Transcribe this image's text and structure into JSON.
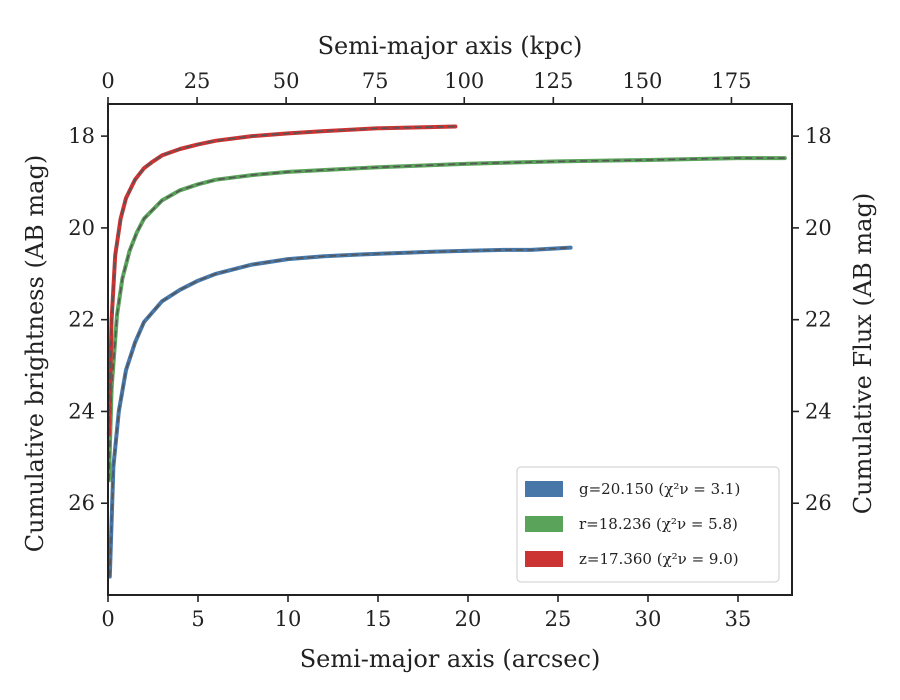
{
  "chart_data": {
    "type": "line",
    "xlabel": "Semi-major axis (arcsec)",
    "x2label": "Semi-major axis (kpc)",
    "ylabel": "Cumulative brightness (AB mag)",
    "y2label": "Cumulative Flux (AB mag)",
    "xlim": [
      0,
      38
    ],
    "x2lim": [
      0,
      192
    ],
    "ylim": [
      28.0,
      17.3
    ],
    "y_inverted": true,
    "xticks": [
      "0",
      "5",
      "10",
      "15",
      "20",
      "25",
      "30",
      "35"
    ],
    "x2ticks": [
      "0",
      "25",
      "50",
      "75",
      "100",
      "125",
      "150",
      "175"
    ],
    "yticks": [
      "18",
      "20",
      "22",
      "24",
      "26"
    ],
    "grid": false,
    "legend_position": "lower-right",
    "series": [
      {
        "name": "g",
        "label_main": "g=20.150",
        "label_stat": "(χ²ν = 3.1)",
        "color": "#4777a8",
        "x": [
          0.1,
          0.3,
          0.6,
          1.0,
          1.5,
          2.0,
          3.0,
          4.0,
          5.0,
          6.0,
          8.0,
          10.0,
          12.0,
          14.0,
          16.0,
          18.0,
          20.0,
          22.0,
          23.5,
          25.7
        ],
        "y": [
          27.6,
          25.2,
          24.0,
          23.1,
          22.5,
          22.05,
          21.6,
          21.35,
          21.15,
          21.0,
          20.8,
          20.68,
          20.62,
          20.58,
          20.55,
          20.52,
          20.5,
          20.48,
          20.48,
          20.43
        ]
      },
      {
        "name": "r",
        "label_main": "r=18.236",
        "label_stat": "(χ²ν = 5.8)",
        "color": "#5aa35a",
        "x": [
          0.05,
          0.2,
          0.5,
          0.8,
          1.2,
          1.6,
          2.0,
          3.0,
          4.0,
          5.0,
          6.0,
          8.0,
          10.0,
          15.0,
          20.0,
          25.0,
          30.0,
          35.0,
          37.6
        ],
        "y": [
          25.5,
          23.5,
          21.9,
          21.1,
          20.5,
          20.1,
          19.8,
          19.4,
          19.18,
          19.05,
          18.95,
          18.85,
          18.78,
          18.68,
          18.6,
          18.55,
          18.52,
          18.48,
          18.48
        ]
      },
      {
        "name": "z",
        "label_main": "z=17.360",
        "label_stat": "(χ²ν = 9.0)",
        "color": "#cc3333",
        "x": [
          0.05,
          0.2,
          0.4,
          0.7,
          1.0,
          1.5,
          2.0,
          2.5,
          3.0,
          4.0,
          5.0,
          6.0,
          8.0,
          10.0,
          12.0,
          15.0,
          19.3
        ],
        "y": [
          24.5,
          22.0,
          20.6,
          19.8,
          19.35,
          18.95,
          18.7,
          18.55,
          18.42,
          18.28,
          18.18,
          18.1,
          18.0,
          17.94,
          17.89,
          17.83,
          17.79
        ]
      }
    ]
  }
}
